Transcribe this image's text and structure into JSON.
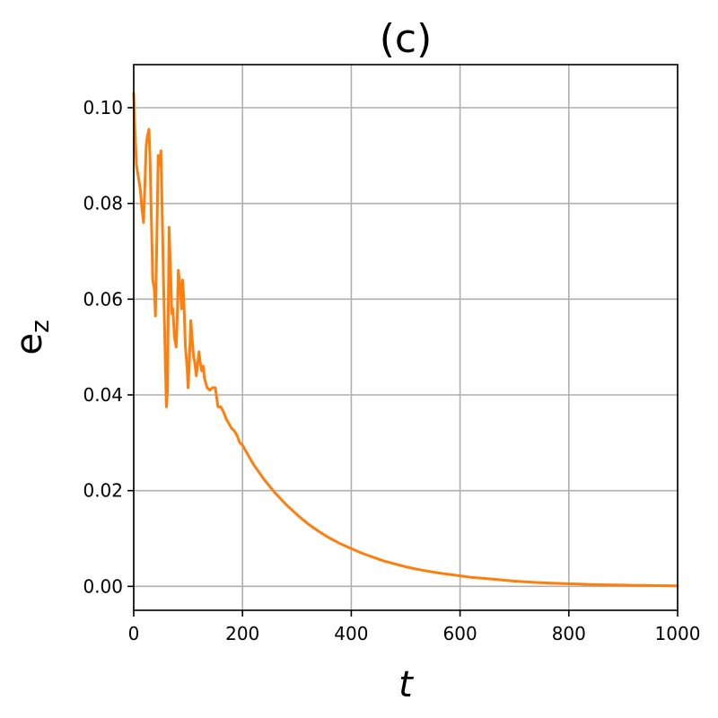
{
  "chart_data": {
    "type": "line",
    "title": "(c)",
    "xlabel": "t",
    "ylabel_base": "e",
    "ylabel_sub": "z",
    "xlim": [
      0,
      1000
    ],
    "ylim": [
      -0.005,
      0.109
    ],
    "xticks": [
      0,
      200,
      400,
      600,
      800,
      1000
    ],
    "xtick_labels": [
      "0",
      "200",
      "400",
      "600",
      "800",
      "1000"
    ],
    "yticks": [
      0.0,
      0.02,
      0.04,
      0.06,
      0.08,
      0.1
    ],
    "ytick_labels": [
      "0.00",
      "0.02",
      "0.04",
      "0.06",
      "0.08",
      "0.10"
    ],
    "grid": true,
    "series": [
      {
        "color": "#ff7f0e",
        "x": [
          0,
          2,
          5,
          8,
          12,
          15,
          18,
          20,
          23,
          25,
          28,
          30,
          32,
          35,
          38,
          40,
          42,
          45,
          48,
          50,
          52,
          55,
          58,
          60,
          62,
          65,
          68,
          70,
          72,
          75,
          78,
          80,
          82,
          85,
          88,
          90,
          92,
          95,
          98,
          100,
          102,
          105,
          108,
          110,
          112,
          115,
          118,
          120,
          122,
          125,
          128,
          130,
          135,
          140,
          145,
          150,
          155,
          160,
          165,
          170,
          175,
          180,
          185,
          190,
          195,
          200,
          220,
          240,
          260,
          280,
          300,
          320,
          340,
          360,
          380,
          400,
          420,
          440,
          460,
          480,
          500,
          520,
          540,
          560,
          580,
          600,
          620,
          640,
          660,
          680,
          700,
          720,
          740,
          760,
          780,
          800,
          820,
          840,
          860,
          880,
          900,
          920,
          940,
          960,
          980,
          1000
        ],
        "y": [
          0.103,
          0.096,
          0.088,
          0.086,
          0.083,
          0.079,
          0.076,
          0.082,
          0.092,
          0.094,
          0.0955,
          0.089,
          0.079,
          0.064,
          0.062,
          0.0565,
          0.07,
          0.09,
          0.088,
          0.091,
          0.08,
          0.063,
          0.048,
          0.0375,
          0.041,
          0.075,
          0.065,
          0.057,
          0.058,
          0.052,
          0.05,
          0.056,
          0.066,
          0.063,
          0.058,
          0.064,
          0.06,
          0.05,
          0.046,
          0.0415,
          0.046,
          0.0555,
          0.051,
          0.048,
          0.047,
          0.044,
          0.047,
          0.049,
          0.047,
          0.045,
          0.046,
          0.0435,
          0.0415,
          0.041,
          0.0415,
          0.0415,
          0.0375,
          0.0375,
          0.0365,
          0.035,
          0.034,
          0.033,
          0.0325,
          0.0315,
          0.03,
          0.0295,
          0.0255,
          0.0223,
          0.0195,
          0.0171,
          0.015,
          0.0131,
          0.0115,
          0.0101,
          0.0089,
          0.0079,
          0.0069,
          0.0061,
          0.0053,
          0.0047,
          0.0041,
          0.0036,
          0.0032,
          0.0028,
          0.0025,
          0.0022,
          0.0019,
          0.0017,
          0.0015,
          0.0013,
          0.0011,
          0.00095,
          0.00082,
          0.00071,
          0.00062,
          0.00054,
          0.00047,
          0.0004,
          0.00035,
          0.0003,
          0.00026,
          0.00022,
          0.00019,
          0.00016,
          0.00013,
          0.0001
        ]
      }
    ]
  }
}
